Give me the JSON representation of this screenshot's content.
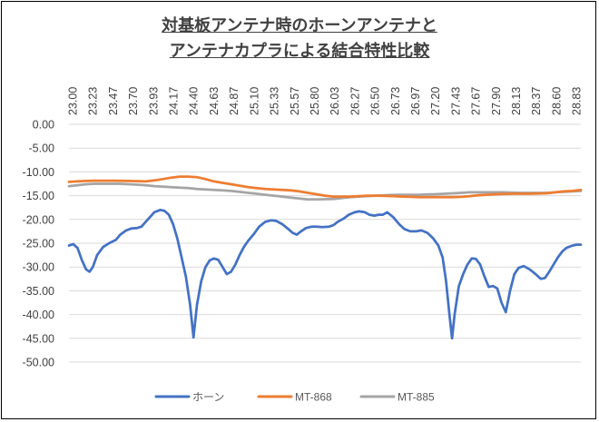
{
  "chart_data": {
    "type": "line",
    "title_lines": [
      "対基板アンテナ時のホーンアンテナと",
      "アンテナカプラによる結合特性比較"
    ],
    "xlabel": "",
    "ylabel": "",
    "x_range": [
      23.0,
      29.0
    ],
    "ylim": [
      -50,
      0
    ],
    "y_ticks": [
      "0.00",
      "-5.00",
      "-10.00",
      "-15.00",
      "-20.00",
      "-25.00",
      "-30.00",
      "-35.00",
      "-40.00",
      "-45.00",
      "-50.00"
    ],
    "x_ticks": [
      "23.00",
      "23.23",
      "23.47",
      "23.70",
      "23.93",
      "24.17",
      "24.40",
      "24.63",
      "24.87",
      "25.10",
      "25.33",
      "25.57",
      "25.80",
      "26.03",
      "26.27",
      "26.50",
      "26.73",
      "26.97",
      "27.20",
      "27.43",
      "27.67",
      "27.90",
      "28.13",
      "28.37",
      "28.60",
      "28.83"
    ],
    "x_tick_position": "top",
    "grid": "horizontal",
    "legend_position": "bottom",
    "series": [
      {
        "name": "ホーン",
        "color": "#4472C4",
        "points": [
          [
            23.0,
            -25.5
          ],
          [
            23.05,
            -25.2
          ],
          [
            23.1,
            -26.0
          ],
          [
            23.15,
            -28.5
          ],
          [
            23.2,
            -30.5
          ],
          [
            23.24,
            -31.0
          ],
          [
            23.28,
            -30.0
          ],
          [
            23.33,
            -27.5
          ],
          [
            23.4,
            -25.8
          ],
          [
            23.47,
            -25.0
          ],
          [
            23.55,
            -24.3
          ],
          [
            23.6,
            -23.2
          ],
          [
            23.67,
            -22.3
          ],
          [
            23.73,
            -21.9
          ],
          [
            23.8,
            -21.8
          ],
          [
            23.85,
            -21.5
          ],
          [
            23.9,
            -20.5
          ],
          [
            23.95,
            -19.5
          ],
          [
            24.0,
            -18.5
          ],
          [
            24.07,
            -18.0
          ],
          [
            24.12,
            -18.2
          ],
          [
            24.17,
            -19.0
          ],
          [
            24.22,
            -21.0
          ],
          [
            24.27,
            -24.0
          ],
          [
            24.32,
            -28.0
          ],
          [
            24.37,
            -32.0
          ],
          [
            24.42,
            -38.0
          ],
          [
            24.46,
            -44.8
          ],
          [
            24.5,
            -38.0
          ],
          [
            24.55,
            -33.0
          ],
          [
            24.6,
            -30.0
          ],
          [
            24.65,
            -28.6
          ],
          [
            24.7,
            -28.2
          ],
          [
            24.75,
            -28.5
          ],
          [
            24.8,
            -30.0
          ],
          [
            24.85,
            -31.5
          ],
          [
            24.9,
            -31.0
          ],
          [
            24.95,
            -29.5
          ],
          [
            25.0,
            -27.5
          ],
          [
            25.05,
            -25.8
          ],
          [
            25.1,
            -24.5
          ],
          [
            25.17,
            -23.0
          ],
          [
            25.23,
            -21.5
          ],
          [
            25.3,
            -20.5
          ],
          [
            25.37,
            -20.2
          ],
          [
            25.43,
            -20.3
          ],
          [
            25.5,
            -21.0
          ],
          [
            25.57,
            -22.0
          ],
          [
            25.62,
            -22.8
          ],
          [
            25.67,
            -23.2
          ],
          [
            25.72,
            -22.5
          ],
          [
            25.78,
            -21.8
          ],
          [
            25.85,
            -21.5
          ],
          [
            25.9,
            -21.5
          ],
          [
            25.97,
            -21.6
          ],
          [
            26.05,
            -21.5
          ],
          [
            26.1,
            -21.2
          ],
          [
            26.15,
            -20.5
          ],
          [
            26.22,
            -19.8
          ],
          [
            26.28,
            -19.0
          ],
          [
            26.35,
            -18.5
          ],
          [
            26.4,
            -18.3
          ],
          [
            26.47,
            -18.5
          ],
          [
            26.52,
            -19.0
          ],
          [
            26.58,
            -19.2
          ],
          [
            26.63,
            -19.0
          ],
          [
            26.68,
            -19.0
          ],
          [
            26.73,
            -18.5
          ],
          [
            26.8,
            -19.5
          ],
          [
            26.87,
            -21.0
          ],
          [
            26.93,
            -22.0
          ],
          [
            27.0,
            -22.5
          ],
          [
            27.07,
            -22.5
          ],
          [
            27.13,
            -22.3
          ],
          [
            27.2,
            -22.8
          ],
          [
            27.27,
            -24.0
          ],
          [
            27.33,
            -25.5
          ],
          [
            27.38,
            -28.0
          ],
          [
            27.42,
            -33.0
          ],
          [
            27.46,
            -40.0
          ],
          [
            27.49,
            -45.0
          ],
          [
            27.52,
            -40.0
          ],
          [
            27.57,
            -34.0
          ],
          [
            27.62,
            -31.5
          ],
          [
            27.67,
            -29.5
          ],
          [
            27.72,
            -28.2
          ],
          [
            27.77,
            -28.3
          ],
          [
            27.82,
            -29.5
          ],
          [
            27.87,
            -32.0
          ],
          [
            27.92,
            -34.2
          ],
          [
            27.97,
            -34.0
          ],
          [
            28.02,
            -34.5
          ],
          [
            28.07,
            -37.5
          ],
          [
            28.12,
            -39.5
          ],
          [
            28.17,
            -35.0
          ],
          [
            28.22,
            -31.5
          ],
          [
            28.27,
            -30.2
          ],
          [
            28.33,
            -29.8
          ],
          [
            28.4,
            -30.5
          ],
          [
            28.47,
            -31.5
          ],
          [
            28.53,
            -32.5
          ],
          [
            28.58,
            -32.3
          ],
          [
            28.63,
            -31.0
          ],
          [
            28.68,
            -29.5
          ],
          [
            28.73,
            -28.0
          ],
          [
            28.78,
            -26.8
          ],
          [
            28.83,
            -26.0
          ],
          [
            28.9,
            -25.5
          ],
          [
            28.95,
            -25.3
          ],
          [
            29.0,
            -25.3
          ]
        ]
      },
      {
        "name": "MT-868",
        "color": "#ED7D31",
        "points": [
          [
            23.0,
            -12.1
          ],
          [
            23.1,
            -12.0
          ],
          [
            23.2,
            -11.9
          ],
          [
            23.3,
            -11.85
          ],
          [
            23.5,
            -11.85
          ],
          [
            23.7,
            -11.9
          ],
          [
            23.9,
            -12.0
          ],
          [
            24.0,
            -11.8
          ],
          [
            24.1,
            -11.5
          ],
          [
            24.2,
            -11.2
          ],
          [
            24.3,
            -11.0
          ],
          [
            24.4,
            -11.0
          ],
          [
            24.5,
            -11.1
          ],
          [
            24.6,
            -11.5
          ],
          [
            24.7,
            -12.0
          ],
          [
            24.8,
            -12.3
          ],
          [
            24.9,
            -12.6
          ],
          [
            25.0,
            -12.9
          ],
          [
            25.1,
            -13.2
          ],
          [
            25.2,
            -13.4
          ],
          [
            25.3,
            -13.6
          ],
          [
            25.4,
            -13.7
          ],
          [
            25.5,
            -13.8
          ],
          [
            25.6,
            -13.9
          ],
          [
            25.7,
            -14.1
          ],
          [
            25.8,
            -14.4
          ],
          [
            25.9,
            -14.7
          ],
          [
            26.0,
            -15.0
          ],
          [
            26.1,
            -15.2
          ],
          [
            26.2,
            -15.2
          ],
          [
            26.3,
            -15.2
          ],
          [
            26.4,
            -15.1
          ],
          [
            26.5,
            -15.0
          ],
          [
            26.6,
            -15.0
          ],
          [
            26.7,
            -15.05
          ],
          [
            26.8,
            -15.1
          ],
          [
            26.9,
            -15.2
          ],
          [
            27.0,
            -15.25
          ],
          [
            27.1,
            -15.3
          ],
          [
            27.2,
            -15.3
          ],
          [
            27.3,
            -15.3
          ],
          [
            27.4,
            -15.3
          ],
          [
            27.5,
            -15.3
          ],
          [
            27.6,
            -15.25
          ],
          [
            27.7,
            -15.1
          ],
          [
            27.8,
            -14.9
          ],
          [
            27.9,
            -14.8
          ],
          [
            28.0,
            -14.7
          ],
          [
            28.2,
            -14.6
          ],
          [
            28.4,
            -14.6
          ],
          [
            28.6,
            -14.5
          ],
          [
            28.7,
            -14.3
          ],
          [
            28.8,
            -14.1
          ],
          [
            28.9,
            -14.0
          ],
          [
            29.0,
            -13.8
          ]
        ]
      },
      {
        "name": "MT-885",
        "color": "#A5A5A5",
        "points": [
          [
            23.0,
            -13.0
          ],
          [
            23.1,
            -12.8
          ],
          [
            23.2,
            -12.6
          ],
          [
            23.3,
            -12.5
          ],
          [
            23.4,
            -12.5
          ],
          [
            23.5,
            -12.5
          ],
          [
            23.6,
            -12.5
          ],
          [
            23.7,
            -12.6
          ],
          [
            23.8,
            -12.7
          ],
          [
            23.9,
            -12.8
          ],
          [
            24.0,
            -13.0
          ],
          [
            24.1,
            -13.1
          ],
          [
            24.2,
            -13.2
          ],
          [
            24.3,
            -13.3
          ],
          [
            24.4,
            -13.4
          ],
          [
            24.5,
            -13.6
          ],
          [
            24.6,
            -13.7
          ],
          [
            24.7,
            -13.8
          ],
          [
            24.8,
            -13.9
          ],
          [
            24.9,
            -14.0
          ],
          [
            25.0,
            -14.2
          ],
          [
            25.1,
            -14.4
          ],
          [
            25.2,
            -14.6
          ],
          [
            25.3,
            -14.8
          ],
          [
            25.4,
            -15.0
          ],
          [
            25.5,
            -15.2
          ],
          [
            25.6,
            -15.4
          ],
          [
            25.7,
            -15.6
          ],
          [
            25.8,
            -15.8
          ],
          [
            25.9,
            -15.8
          ],
          [
            26.0,
            -15.75
          ],
          [
            26.1,
            -15.7
          ],
          [
            26.2,
            -15.5
          ],
          [
            26.3,
            -15.3
          ],
          [
            26.4,
            -15.2
          ],
          [
            26.5,
            -15.1
          ],
          [
            26.6,
            -15.0
          ],
          [
            26.7,
            -14.9
          ],
          [
            26.8,
            -14.85
          ],
          [
            26.9,
            -14.8
          ],
          [
            27.0,
            -14.8
          ],
          [
            27.1,
            -14.8
          ],
          [
            27.2,
            -14.75
          ],
          [
            27.3,
            -14.7
          ],
          [
            27.4,
            -14.6
          ],
          [
            27.5,
            -14.5
          ],
          [
            27.6,
            -14.4
          ],
          [
            27.7,
            -14.3
          ],
          [
            27.8,
            -14.3
          ],
          [
            27.9,
            -14.3
          ],
          [
            28.0,
            -14.3
          ],
          [
            28.1,
            -14.3
          ],
          [
            28.2,
            -14.35
          ],
          [
            28.3,
            -14.4
          ],
          [
            28.4,
            -14.4
          ],
          [
            28.5,
            -14.4
          ],
          [
            28.6,
            -14.4
          ],
          [
            28.7,
            -14.3
          ],
          [
            28.8,
            -14.2
          ],
          [
            28.9,
            -14.1
          ],
          [
            29.0,
            -14.0
          ]
        ]
      }
    ]
  }
}
